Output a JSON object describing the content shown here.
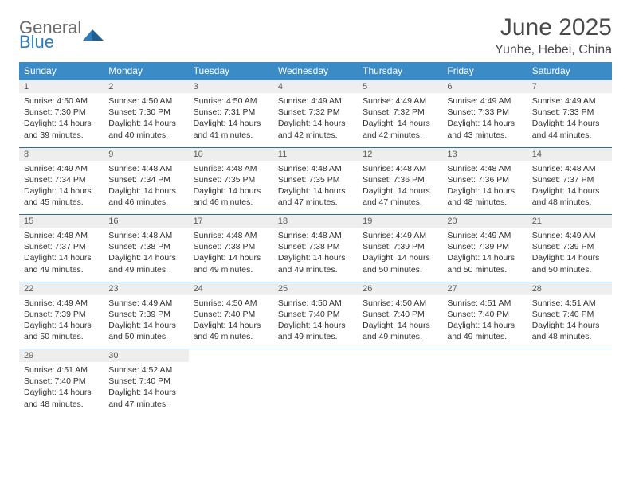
{
  "logo": {
    "word1": "General",
    "word2": "Blue"
  },
  "title": "June 2025",
  "location": "Yunhe, Hebei, China",
  "colors": {
    "header_bg": "#3b8bc7",
    "header_text": "#ffffff",
    "daynum_bg": "#eeeeee",
    "border": "#2f6f9e",
    "body_text": "#333333",
    "logo_gray": "#6b6b6b",
    "logo_blue": "#2f7aba",
    "page_bg": "#ffffff"
  },
  "weekdays": [
    "Sunday",
    "Monday",
    "Tuesday",
    "Wednesday",
    "Thursday",
    "Friday",
    "Saturday"
  ],
  "weeks": [
    [
      {
        "n": "1",
        "sunrise": "4:50 AM",
        "sunset": "7:30 PM",
        "dl": "14 hours and 39 minutes."
      },
      {
        "n": "2",
        "sunrise": "4:50 AM",
        "sunset": "7:30 PM",
        "dl": "14 hours and 40 minutes."
      },
      {
        "n": "3",
        "sunrise": "4:50 AM",
        "sunset": "7:31 PM",
        "dl": "14 hours and 41 minutes."
      },
      {
        "n": "4",
        "sunrise": "4:49 AM",
        "sunset": "7:32 PM",
        "dl": "14 hours and 42 minutes."
      },
      {
        "n": "5",
        "sunrise": "4:49 AM",
        "sunset": "7:32 PM",
        "dl": "14 hours and 42 minutes."
      },
      {
        "n": "6",
        "sunrise": "4:49 AM",
        "sunset": "7:33 PM",
        "dl": "14 hours and 43 minutes."
      },
      {
        "n": "7",
        "sunrise": "4:49 AM",
        "sunset": "7:33 PM",
        "dl": "14 hours and 44 minutes."
      }
    ],
    [
      {
        "n": "8",
        "sunrise": "4:49 AM",
        "sunset": "7:34 PM",
        "dl": "14 hours and 45 minutes."
      },
      {
        "n": "9",
        "sunrise": "4:48 AM",
        "sunset": "7:34 PM",
        "dl": "14 hours and 46 minutes."
      },
      {
        "n": "10",
        "sunrise": "4:48 AM",
        "sunset": "7:35 PM",
        "dl": "14 hours and 46 minutes."
      },
      {
        "n": "11",
        "sunrise": "4:48 AM",
        "sunset": "7:35 PM",
        "dl": "14 hours and 47 minutes."
      },
      {
        "n": "12",
        "sunrise": "4:48 AM",
        "sunset": "7:36 PM",
        "dl": "14 hours and 47 minutes."
      },
      {
        "n": "13",
        "sunrise": "4:48 AM",
        "sunset": "7:36 PM",
        "dl": "14 hours and 48 minutes."
      },
      {
        "n": "14",
        "sunrise": "4:48 AM",
        "sunset": "7:37 PM",
        "dl": "14 hours and 48 minutes."
      }
    ],
    [
      {
        "n": "15",
        "sunrise": "4:48 AM",
        "sunset": "7:37 PM",
        "dl": "14 hours and 49 minutes."
      },
      {
        "n": "16",
        "sunrise": "4:48 AM",
        "sunset": "7:38 PM",
        "dl": "14 hours and 49 minutes."
      },
      {
        "n": "17",
        "sunrise": "4:48 AM",
        "sunset": "7:38 PM",
        "dl": "14 hours and 49 minutes."
      },
      {
        "n": "18",
        "sunrise": "4:48 AM",
        "sunset": "7:38 PM",
        "dl": "14 hours and 49 minutes."
      },
      {
        "n": "19",
        "sunrise": "4:49 AM",
        "sunset": "7:39 PM",
        "dl": "14 hours and 50 minutes."
      },
      {
        "n": "20",
        "sunrise": "4:49 AM",
        "sunset": "7:39 PM",
        "dl": "14 hours and 50 minutes."
      },
      {
        "n": "21",
        "sunrise": "4:49 AM",
        "sunset": "7:39 PM",
        "dl": "14 hours and 50 minutes."
      }
    ],
    [
      {
        "n": "22",
        "sunrise": "4:49 AM",
        "sunset": "7:39 PM",
        "dl": "14 hours and 50 minutes."
      },
      {
        "n": "23",
        "sunrise": "4:49 AM",
        "sunset": "7:39 PM",
        "dl": "14 hours and 50 minutes."
      },
      {
        "n": "24",
        "sunrise": "4:50 AM",
        "sunset": "7:40 PM",
        "dl": "14 hours and 49 minutes."
      },
      {
        "n": "25",
        "sunrise": "4:50 AM",
        "sunset": "7:40 PM",
        "dl": "14 hours and 49 minutes."
      },
      {
        "n": "26",
        "sunrise": "4:50 AM",
        "sunset": "7:40 PM",
        "dl": "14 hours and 49 minutes."
      },
      {
        "n": "27",
        "sunrise": "4:51 AM",
        "sunset": "7:40 PM",
        "dl": "14 hours and 49 minutes."
      },
      {
        "n": "28",
        "sunrise": "4:51 AM",
        "sunset": "7:40 PM",
        "dl": "14 hours and 48 minutes."
      }
    ],
    [
      {
        "n": "29",
        "sunrise": "4:51 AM",
        "sunset": "7:40 PM",
        "dl": "14 hours and 48 minutes."
      },
      {
        "n": "30",
        "sunrise": "4:52 AM",
        "sunset": "7:40 PM",
        "dl": "14 hours and 47 minutes."
      },
      null,
      null,
      null,
      null,
      null
    ]
  ],
  "labels": {
    "sunrise": "Sunrise:",
    "sunset": "Sunset:",
    "daylight": "Daylight:"
  }
}
